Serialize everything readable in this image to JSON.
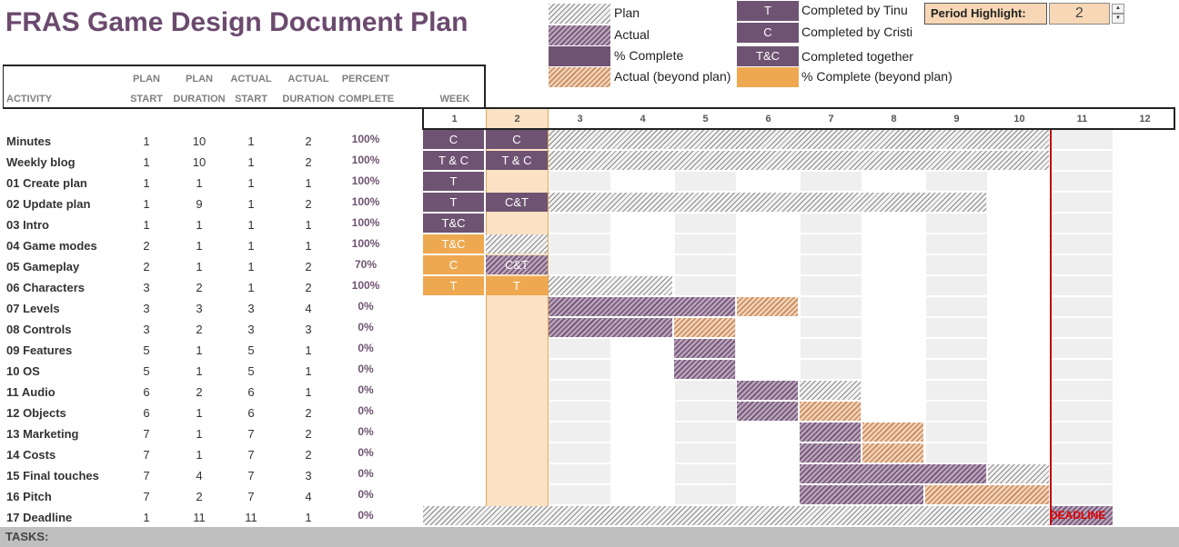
{
  "title": "FRAS Game Design Document Plan",
  "legend": {
    "plan": "Plan",
    "actual": "Actual",
    "percent_complete": "% Complete",
    "actual_beyond": "Actual (beyond plan)",
    "percent_beyond": "% Complete (beyond plan)",
    "badge_t": "T",
    "badge_c": "C",
    "badge_tc": "T&C",
    "completed_tinu": "Completed by Tinu",
    "completed_cristi": "Completed by Cristi",
    "completed_together": "Completed together"
  },
  "period": {
    "label": "Period Highlight:",
    "value": "2"
  },
  "columns": {
    "activity": "ACTIVITY",
    "plan_start_1": "PLAN",
    "plan_start_2": "START",
    "plan_dur_1": "PLAN",
    "plan_dur_2": "DURATION",
    "act_start_1": "ACTUAL",
    "act_start_2": "START",
    "act_dur_1": "ACTUAL",
    "act_dur_2": "DURATION",
    "pct_1": "PERCENT",
    "pct_2": "COMPLETE",
    "week": "WEEK"
  },
  "weeks": [
    "1",
    "2",
    "3",
    "4",
    "5",
    "6",
    "7",
    "8",
    "9",
    "10",
    "11",
    "12"
  ],
  "rows": [
    {
      "name": "Minutes",
      "plan_start": "1",
      "plan_duration": "10",
      "actual_start": "1",
      "actual_duration": "2",
      "percent": "100%",
      "marks": [
        "C",
        "C"
      ]
    },
    {
      "name": "Weekly blog",
      "plan_start": "1",
      "plan_duration": "10",
      "actual_start": "1",
      "actual_duration": "2",
      "percent": "100%",
      "marks": [
        "T & C",
        "T & C"
      ]
    },
    {
      "name": "01 Create plan",
      "plan_start": "1",
      "plan_duration": "1",
      "actual_start": "1",
      "actual_duration": "1",
      "percent": "100%",
      "marks": [
        "T"
      ]
    },
    {
      "name": "02 Update plan",
      "plan_start": "1",
      "plan_duration": "9",
      "actual_start": "1",
      "actual_duration": "2",
      "percent": "100%",
      "marks": [
        "T",
        "C&T"
      ]
    },
    {
      "name": "03 Intro",
      "plan_start": "1",
      "plan_duration": "1",
      "actual_start": "1",
      "actual_duration": "1",
      "percent": "100%",
      "marks": [
        "T&C"
      ]
    },
    {
      "name": "04 Game modes",
      "plan_start": "2",
      "plan_duration": "1",
      "actual_start": "1",
      "actual_duration": "1",
      "percent": "100%",
      "marks": [
        "T&C"
      ]
    },
    {
      "name": "05 Gameplay",
      "plan_start": "2",
      "plan_duration": "1",
      "actual_start": "1",
      "actual_duration": "2",
      "percent": "70%",
      "marks": [
        "C",
        "C&T"
      ]
    },
    {
      "name": "06 Characters",
      "plan_start": "3",
      "plan_duration": "2",
      "actual_start": "1",
      "actual_duration": "2",
      "percent": "100%",
      "marks": [
        "T",
        "T"
      ]
    },
    {
      "name": "07 Levels",
      "plan_start": "3",
      "plan_duration": "3",
      "actual_start": "3",
      "actual_duration": "4",
      "percent": "0%",
      "marks": []
    },
    {
      "name": "08 Controls",
      "plan_start": "3",
      "plan_duration": "2",
      "actual_start": "3",
      "actual_duration": "3",
      "percent": "0%",
      "marks": []
    },
    {
      "name": "09 Features",
      "plan_start": "5",
      "plan_duration": "1",
      "actual_start": "5",
      "actual_duration": "1",
      "percent": "0%",
      "marks": []
    },
    {
      "name": "10 OS",
      "plan_start": "5",
      "plan_duration": "1",
      "actual_start": "5",
      "actual_duration": "1",
      "percent": "0%",
      "marks": []
    },
    {
      "name": "11 Audio",
      "plan_start": "6",
      "plan_duration": "2",
      "actual_start": "6",
      "actual_duration": "1",
      "percent": "0%",
      "marks": []
    },
    {
      "name": "12 Objects",
      "plan_start": "6",
      "plan_duration": "1",
      "actual_start": "6",
      "actual_duration": "2",
      "percent": "0%",
      "marks": []
    },
    {
      "name": "13 Marketing",
      "plan_start": "7",
      "plan_duration": "1",
      "actual_start": "7",
      "actual_duration": "2",
      "percent": "0%",
      "marks": []
    },
    {
      "name": "14 Costs",
      "plan_start": "7",
      "plan_duration": "1",
      "actual_start": "7",
      "actual_duration": "2",
      "percent": "0%",
      "marks": []
    },
    {
      "name": "15 Final touches",
      "plan_start": "7",
      "plan_duration": "4",
      "actual_start": "7",
      "actual_duration": "3",
      "percent": "0%",
      "marks": []
    },
    {
      "name": "16 Pitch",
      "plan_start": "7",
      "plan_duration": "2",
      "actual_start": "7",
      "actual_duration": "4",
      "percent": "0%",
      "marks": []
    },
    {
      "name": "17 Deadline",
      "plan_start": "1",
      "plan_duration": "11",
      "actual_start": "11",
      "actual_duration": "1",
      "percent": "0%",
      "marks": []
    }
  ],
  "deadline_label": "DEADLINE",
  "tasks_label": "TASKS:"
}
